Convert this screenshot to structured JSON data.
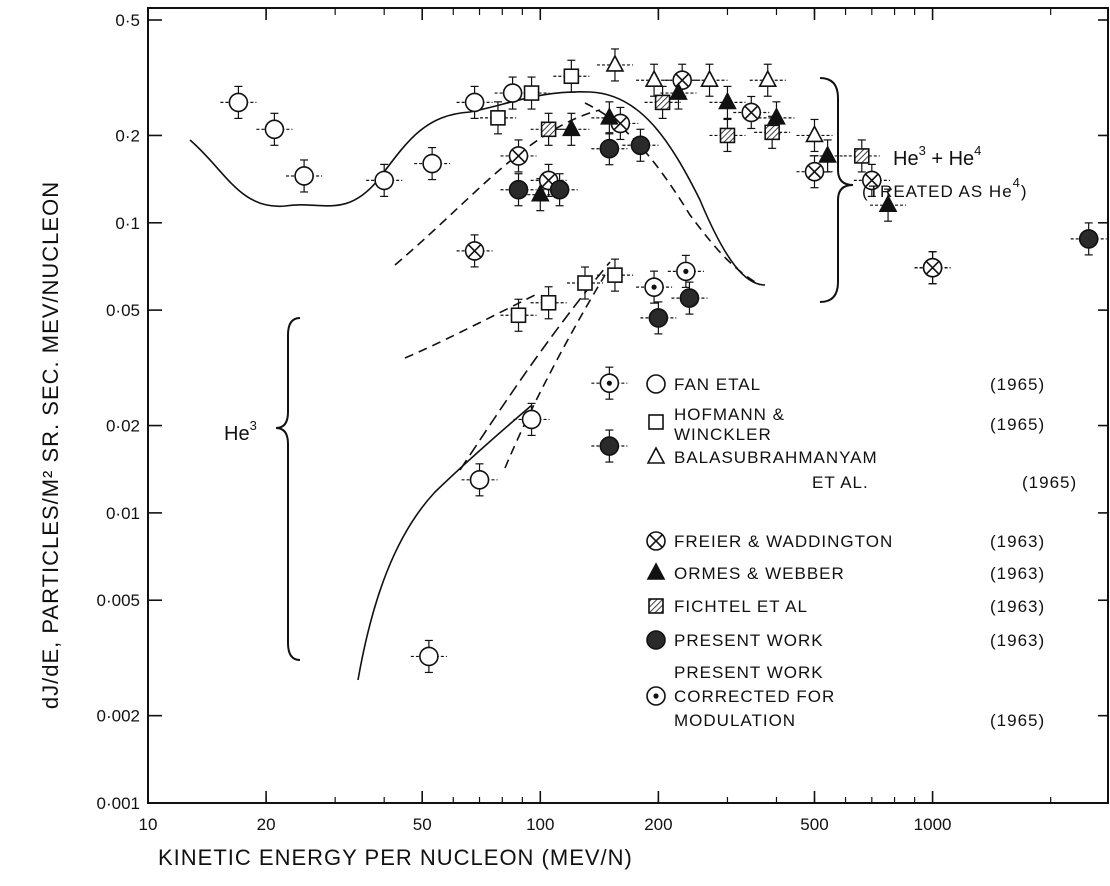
{
  "chart_data": {
    "type": "scatter",
    "title": "",
    "xlabel": "KINETIC ENERGY PER NUCLEON (MEV/N)",
    "ylabel": "dJ/dE, PARTICLES/M² SR. SEC. MEV/NUCLEON",
    "x_scale": "log",
    "y_scale": "log",
    "xlim": [
      10,
      2800
    ],
    "ylim": [
      0.001,
      0.55
    ],
    "x_ticks": [
      {
        "value": 10,
        "label": "10"
      },
      {
        "value": 20,
        "label": "20"
      },
      {
        "value": 50,
        "label": "50"
      },
      {
        "value": 100,
        "label": "100"
      },
      {
        "value": 200,
        "label": "200"
      },
      {
        "value": 500,
        "label": "500"
      },
      {
        "value": 1000,
        "label": "1000"
      }
    ],
    "y_ticks": [
      {
        "value": 0.001,
        "label": "0·001"
      },
      {
        "value": 0.002,
        "label": "0·002"
      },
      {
        "value": 0.005,
        "label": "0·005"
      },
      {
        "value": 0.01,
        "label": "0·01"
      },
      {
        "value": 0.02,
        "label": "0·02"
      },
      {
        "value": 0.05,
        "label": "0·05"
      },
      {
        "value": 0.1,
        "label": "0·1"
      },
      {
        "value": 0.2,
        "label": "0·2"
      },
      {
        "value": 0.5,
        "label": "0·5"
      }
    ],
    "grid": false,
    "legend_position": "right",
    "annotations": {
      "he34_main": "He",
      "he34_sup1": "3",
      "he34_plus": " + He",
      "he34_sup2": "4",
      "he34_sub": "(TREATED AS He",
      "he34_sub_sup": "4",
      "he34_close": ")",
      "he3_main": "He",
      "he3_sup": "3"
    },
    "series": [
      {
        "id": "fan",
        "legend": [
          "FAN ETAL",
          "(1965)"
        ],
        "marker": "circle-open",
        "points": [
          {
            "x": 17,
            "y": 0.26
          },
          {
            "x": 21,
            "y": 0.21
          },
          {
            "x": 25,
            "y": 0.145
          },
          {
            "x": 40,
            "y": 0.14
          },
          {
            "x": 53,
            "y": 0.16
          },
          {
            "x": 68,
            "y": 0.26
          },
          {
            "x": 85,
            "y": 0.28
          },
          {
            "x": 1000,
            "y": 0.07
          },
          {
            "x": 52,
            "y": 0.0032
          },
          {
            "x": 70,
            "y": 0.013
          },
          {
            "x": 95,
            "y": 0.021
          }
        ]
      },
      {
        "id": "hofmann",
        "legend": [
          "HOFMANN &",
          "WINCKLER",
          "(1965)"
        ],
        "marker": "square-open",
        "points": [
          {
            "x": 78,
            "y": 0.23
          },
          {
            "x": 95,
            "y": 0.28
          },
          {
            "x": 120,
            "y": 0.32
          },
          {
            "x": 88,
            "y": 0.048
          },
          {
            "x": 105,
            "y": 0.053
          },
          {
            "x": 130,
            "y": 0.062
          },
          {
            "x": 155,
            "y": 0.066
          }
        ]
      },
      {
        "id": "balasubrahmanyam",
        "legend": [
          "BALASUBRAHMANYAM",
          "ET AL.",
          "(1965)"
        ],
        "marker": "triangle-open",
        "points": [
          {
            "x": 155,
            "y": 0.35
          },
          {
            "x": 195,
            "y": 0.31
          },
          {
            "x": 270,
            "y": 0.31
          },
          {
            "x": 380,
            "y": 0.31
          },
          {
            "x": 500,
            "y": 0.2
          }
        ]
      },
      {
        "id": "freier",
        "legend": [
          "FREIER & WADDINGTON",
          "(1963)"
        ],
        "marker": "circle-cross",
        "points": [
          {
            "x": 68,
            "y": 0.08
          },
          {
            "x": 88,
            "y": 0.17
          },
          {
            "x": 105,
            "y": 0.14
          },
          {
            "x": 160,
            "y": 0.22
          },
          {
            "x": 230,
            "y": 0.31
          },
          {
            "x": 345,
            "y": 0.24
          },
          {
            "x": 500,
            "y": 0.15
          },
          {
            "x": 700,
            "y": 0.14
          },
          {
            "x": 1000,
            "y": 0.07
          }
        ]
      },
      {
        "id": "ormes",
        "legend": [
          "ORMES & WEBBER",
          "(1963)"
        ],
        "marker": "triangle-filled",
        "points": [
          {
            "x": 100,
            "y": 0.125
          },
          {
            "x": 120,
            "y": 0.21
          },
          {
            "x": 150,
            "y": 0.23
          },
          {
            "x": 225,
            "y": 0.28
          },
          {
            "x": 300,
            "y": 0.26
          },
          {
            "x": 400,
            "y": 0.23
          },
          {
            "x": 540,
            "y": 0.17
          },
          {
            "x": 770,
            "y": 0.115
          }
        ]
      },
      {
        "id": "fichtel",
        "legend": [
          "FICHTEL ET AL",
          "(1963)"
        ],
        "marker": "square-hatched",
        "points": [
          {
            "x": 105,
            "y": 0.21
          },
          {
            "x": 205,
            "y": 0.26
          },
          {
            "x": 300,
            "y": 0.2
          },
          {
            "x": 390,
            "y": 0.205
          },
          {
            "x": 660,
            "y": 0.17
          }
        ]
      },
      {
        "id": "present",
        "legend": [
          "PRESENT WORK",
          "(1963)"
        ],
        "marker": "circle-filled",
        "points": [
          {
            "x": 88,
            "y": 0.13
          },
          {
            "x": 112,
            "y": 0.13
          },
          {
            "x": 150,
            "y": 0.18
          },
          {
            "x": 180,
            "y": 0.185
          },
          {
            "x": 150,
            "y": 0.017
          },
          {
            "x": 200,
            "y": 0.047
          },
          {
            "x": 240,
            "y": 0.055
          },
          {
            "x": 2500,
            "y": 0.088
          }
        ]
      },
      {
        "id": "present_corrected",
        "legend": [
          "PRESENT WORK",
          "CORRECTED FOR",
          "MODULATION",
          "(1965)"
        ],
        "marker": "circle-dot",
        "points": [
          {
            "x": 150,
            "y": 0.028
          },
          {
            "x": 195,
            "y": 0.06
          },
          {
            "x": 235,
            "y": 0.068
          }
        ]
      }
    ]
  }
}
